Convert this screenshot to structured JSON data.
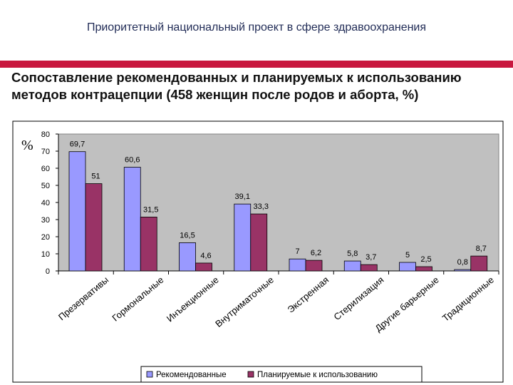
{
  "header": {
    "title": "Приоритетный национальный проект в сфере здравоохранения"
  },
  "slide": {
    "title_line1": "Сопоставление рекомендованных и планируемых к использованию",
    "title_line2": "методов контрацепции (458 женщин после родов и аборта, %)"
  },
  "colors": {
    "accent": "#c8173e",
    "series1": "#9999ff",
    "series2": "#993366",
    "plot_bg": "#c0c0c0"
  },
  "chart_data": {
    "type": "bar",
    "ylabel": "%",
    "ylim": [
      0,
      80
    ],
    "yticks": [
      0,
      10,
      20,
      30,
      40,
      50,
      60,
      70,
      80
    ],
    "grid": false,
    "legend_position": "bottom",
    "categories": [
      "Презервативы",
      "Гормональные",
      "Инъекционные",
      "Внутриматочные",
      "Экстренная",
      "Стерилизация",
      "Другие барьерные",
      "Традиционные"
    ],
    "series": [
      {
        "name": "Рекомендованные",
        "values": [
          69.7,
          60.6,
          16.5,
          39.1,
          7,
          5.8,
          5,
          0.8
        ],
        "labels": [
          "69,7",
          "60,6",
          "16,5",
          "39,1",
          "7",
          "5,8",
          "5",
          "0,8"
        ]
      },
      {
        "name": "Планируемые к использованию",
        "values": [
          51,
          31.5,
          4.6,
          33.3,
          6.2,
          3.7,
          2.5,
          8.7
        ],
        "labels": [
          "51",
          "31,5",
          "4,6",
          "33,3",
          "6,2",
          "3,7",
          "2,5",
          "8,7"
        ]
      }
    ]
  }
}
